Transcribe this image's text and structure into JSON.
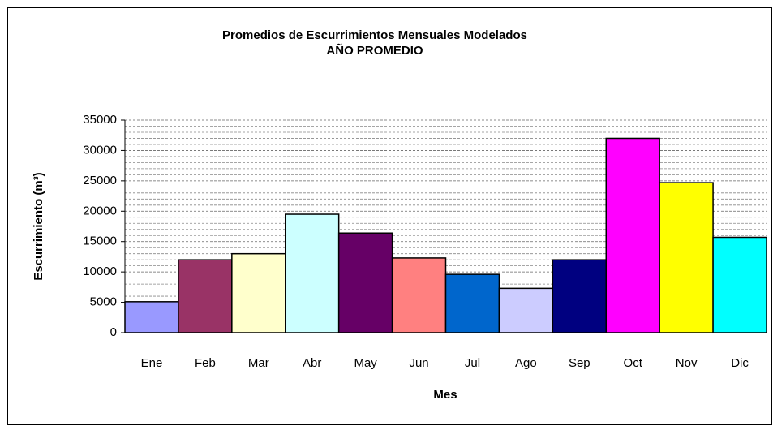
{
  "chart_data": {
    "type": "bar",
    "title": "Promedios de Escurrimientos Mensuales Modelados",
    "subtitle": "AÑO PROMEDIO",
    "x_label": "Mes",
    "y_label": "Escurrimiento (m³)",
    "categories": [
      "Ene",
      "Feb",
      "Mar",
      "Abr",
      "May",
      "Jun",
      "Jul",
      "Ago",
      "Sep",
      "Oct",
      "Nov",
      "Dic"
    ],
    "values": [
      5100,
      12000,
      13000,
      19500,
      16400,
      12300,
      9600,
      7300,
      12000,
      32000,
      24700,
      15700
    ],
    "colors": [
      "#9999ff",
      "#993366",
      "#ffffcc",
      "#ccffff",
      "#660066",
      "#ff8080",
      "#0066cc",
      "#ccccff",
      "#000080",
      "#ff00ff",
      "#ffff00",
      "#00ffff"
    ],
    "ylim": [
      0,
      35000
    ],
    "yticks": [
      0,
      5000,
      10000,
      15000,
      20000,
      25000,
      30000,
      35000
    ],
    "minor_yticks": [
      1000,
      2000,
      3000,
      4000,
      6000,
      7000,
      8000,
      9000,
      11000,
      12000,
      13000,
      14000,
      16000,
      17000,
      18000,
      19000,
      21000,
      22000,
      23000,
      24000,
      26000,
      27000,
      28000,
      29000,
      31000,
      32000,
      33000,
      34000
    ],
    "grid": true
  }
}
